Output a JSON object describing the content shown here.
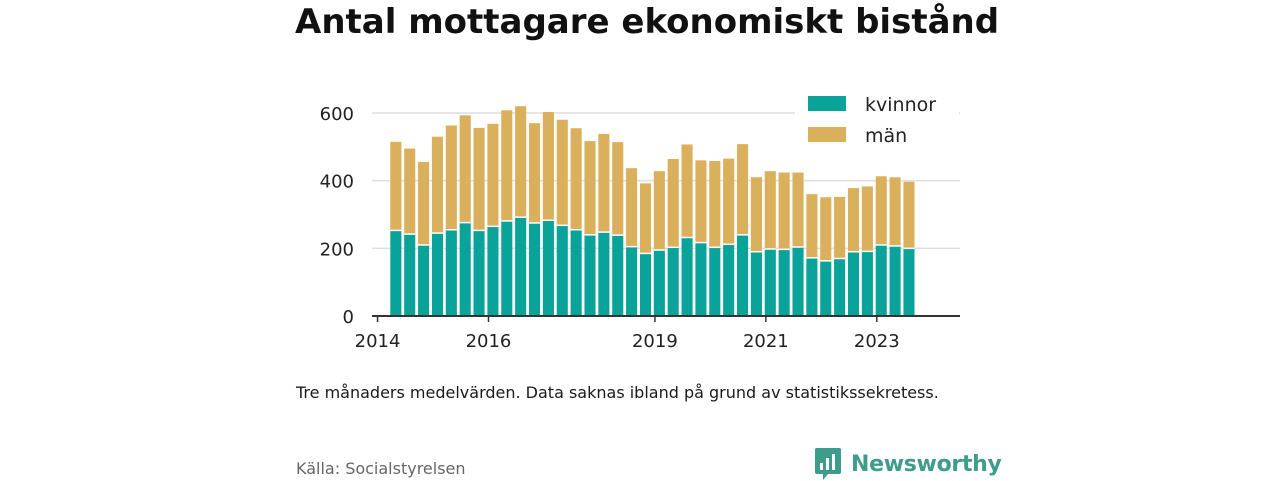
{
  "title": "Antal mottagare ekonomiskt bistånd",
  "note": "Tre månaders medelvärden. Data saknas ibland på grund av statistikssekretess.",
  "source": "Källa: Socialstyrelsen",
  "brand": {
    "name": "Newsworthy",
    "icon": "newsworthy-logo-icon"
  },
  "colors": {
    "kvinnor": "#0aa399",
    "man": "#dbb05c",
    "grid": "#dedede",
    "axis": "#333333"
  },
  "chart_data": {
    "type": "bar",
    "stacked": true,
    "title": "Antal mottagare ekonomiskt bistånd",
    "xlabel": "",
    "ylabel": "",
    "ylim": [
      0,
      600
    ],
    "yticks": [
      0,
      200,
      400,
      600
    ],
    "xlim": [
      2013.9,
      2024.5
    ],
    "xticks": [
      "2014",
      "2016",
      "2019",
      "2021",
      "2023"
    ],
    "legend_position": "top-right",
    "grid": true,
    "x": [
      2014.33,
      2014.58,
      2014.83,
      2015.08,
      2015.33,
      2015.58,
      2015.83,
      2016.08,
      2016.33,
      2016.58,
      2016.83,
      2017.08,
      2017.33,
      2017.58,
      2017.83,
      2018.08,
      2018.33,
      2018.58,
      2018.83,
      2019.08,
      2019.33,
      2019.58,
      2019.83,
      2020.08,
      2020.33,
      2020.58,
      2020.83,
      2021.08,
      2021.33,
      2021.58,
      2021.83,
      2022.08,
      2022.33,
      2022.58,
      2022.83,
      2023.08,
      2023.33,
      2023.58
    ],
    "series": [
      {
        "name": "kvinnor",
        "values": [
          253,
          242,
          210,
          245,
          255,
          276,
          253,
          265,
          281,
          292,
          275,
          283,
          268,
          255,
          240,
          248,
          239,
          205,
          185,
          195,
          203,
          232,
          217,
          203,
          212,
          240,
          190,
          198,
          197,
          204,
          172,
          163,
          170,
          190,
          191,
          210,
          207,
          200
        ]
      },
      {
        "name": "män",
        "values": [
          262,
          253,
          245,
          285,
          308,
          317,
          303,
          303,
          327,
          328,
          295,
          320,
          312,
          300,
          277,
          290,
          275,
          232,
          207,
          233,
          261,
          275,
          243,
          255,
          253,
          268,
          220,
          230,
          227,
          220,
          188,
          188,
          182,
          188,
          192,
          203,
          203,
          197
        ]
      }
    ]
  }
}
